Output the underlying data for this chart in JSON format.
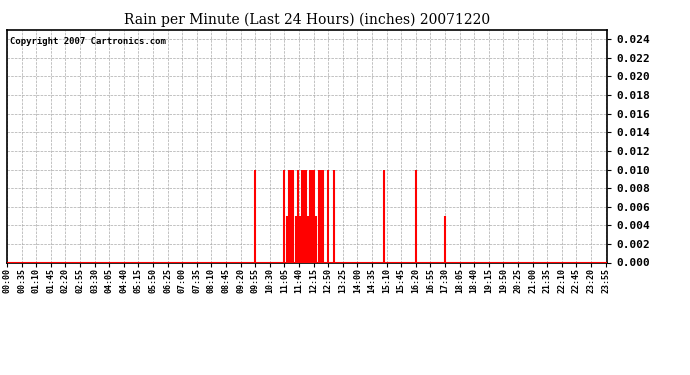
{
  "title": "Rain per Minute (Last 24 Hours) (inches) 20071220",
  "copyright_text": "Copyright 2007 Cartronics.com",
  "background_color": "#ffffff",
  "plot_bg_color": "#ffffff",
  "bar_color": "#ff0000",
  "baseline_color": "#ff0000",
  "grid_color": "#aaaaaa",
  "ylim_min": 0.0,
  "ylim_max": 0.025,
  "yticks": [
    0.0,
    0.002,
    0.004,
    0.006,
    0.008,
    0.01,
    0.012,
    0.014,
    0.016,
    0.018,
    0.02,
    0.022,
    0.024
  ],
  "total_minutes": 1440,
  "tick_interval_minutes": 35,
  "rain_data": [
    {
      "minute": 595,
      "value": 0.01
    },
    {
      "minute": 665,
      "value": 0.01
    },
    {
      "minute": 672,
      "value": 0.005
    },
    {
      "minute": 677,
      "value": 0.01
    },
    {
      "minute": 682,
      "value": 0.01
    },
    {
      "minute": 687,
      "value": 0.01
    },
    {
      "minute": 692,
      "value": 0.005
    },
    {
      "minute": 697,
      "value": 0.01
    },
    {
      "minute": 702,
      "value": 0.005
    },
    {
      "minute": 707,
      "value": 0.01
    },
    {
      "minute": 712,
      "value": 0.01
    },
    {
      "minute": 717,
      "value": 0.01
    },
    {
      "minute": 722,
      "value": 0.005
    },
    {
      "minute": 727,
      "value": 0.01
    },
    {
      "minute": 732,
      "value": 0.01
    },
    {
      "minute": 737,
      "value": 0.01
    },
    {
      "minute": 742,
      "value": 0.005
    },
    {
      "minute": 747,
      "value": 0.01
    },
    {
      "minute": 752,
      "value": 0.01
    },
    {
      "minute": 757,
      "value": 0.01
    },
    {
      "minute": 770,
      "value": 0.01
    },
    {
      "minute": 785,
      "value": 0.01
    },
    {
      "minute": 905,
      "value": 0.01
    },
    {
      "minute": 980,
      "value": 0.01
    },
    {
      "minute": 1050,
      "value": 0.005
    }
  ]
}
